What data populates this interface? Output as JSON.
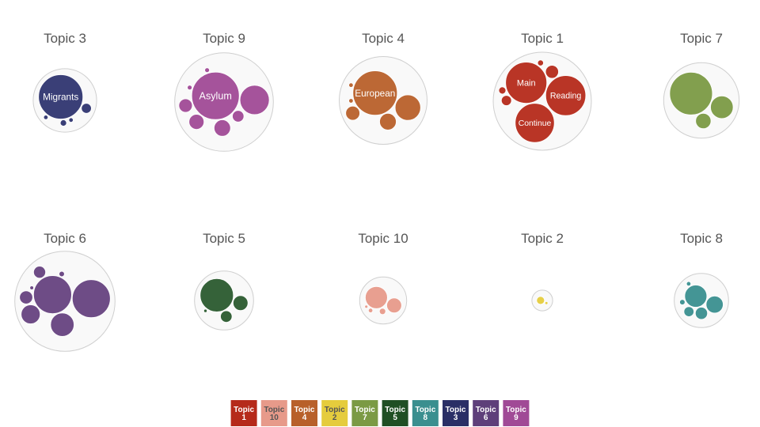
{
  "chart_data": {
    "type": "packed-bubble",
    "panels": [
      {
        "title": "Topic 3",
        "color": "#2f3570",
        "bubbles": [
          {
            "label": "Migrants",
            "value": 100
          },
          {
            "label": "",
            "value": 5
          },
          {
            "label": "",
            "value": 2
          },
          {
            "label": "",
            "value": 1
          },
          {
            "label": "",
            "value": 1
          }
        ]
      },
      {
        "title": "Topic 9",
        "color": "#a04a96",
        "bubbles": [
          {
            "label": "Asylum",
            "value": 100
          },
          {
            "label": "",
            "value": 38
          },
          {
            "label": "",
            "value": 12
          },
          {
            "label": "",
            "value": 10
          },
          {
            "label": "",
            "value": 8
          },
          {
            "label": "",
            "value": 6
          },
          {
            "label": "",
            "value": 1
          },
          {
            "label": "",
            "value": 1
          }
        ]
      },
      {
        "title": "Topic 4",
        "color": "#b8602a",
        "bubbles": [
          {
            "label": "European",
            "value": 100
          },
          {
            "label": "",
            "value": 33
          },
          {
            "label": "",
            "value": 14
          },
          {
            "label": "",
            "value": 10
          },
          {
            "label": "",
            "value": 1
          },
          {
            "label": "",
            "value": 1
          }
        ]
      },
      {
        "title": "Topic 1",
        "color": "#b52a1a",
        "bubbles": [
          {
            "label": "Main",
            "value": 100
          },
          {
            "label": "Reading",
            "value": 95
          },
          {
            "label": "Continue",
            "value": 90
          },
          {
            "label": "",
            "value": 10
          },
          {
            "label": "",
            "value": 6
          },
          {
            "label": "",
            "value": 3
          },
          {
            "label": "",
            "value": 2
          }
        ]
      },
      {
        "title": "Topic 7",
        "color": "#7b9a44",
        "bubbles": [
          {
            "label": "",
            "value": 100
          },
          {
            "label": "",
            "value": 28
          },
          {
            "label": "",
            "value": 13
          }
        ]
      },
      {
        "title": "Topic 6",
        "color": "#66427f",
        "bubbles": [
          {
            "label": "",
            "value": 100
          },
          {
            "label": "",
            "value": 100
          },
          {
            "label": "",
            "value": 38
          },
          {
            "label": "",
            "value": 25
          },
          {
            "label": "",
            "value": 12
          },
          {
            "label": "",
            "value": 10
          },
          {
            "label": "",
            "value": 2
          },
          {
            "label": "",
            "value": 1
          }
        ]
      },
      {
        "title": "Topic 5",
        "color": "#2a5a2e",
        "bubbles": [
          {
            "label": "",
            "value": 100
          },
          {
            "label": "",
            "value": 20
          },
          {
            "label": "",
            "value": 12
          },
          {
            "label": "",
            "value": 1
          }
        ]
      },
      {
        "title": "Topic 10",
        "color": "#e79a8a",
        "bubbles": [
          {
            "label": "",
            "value": 100
          },
          {
            "label": "",
            "value": 45
          },
          {
            "label": "",
            "value": 8
          },
          {
            "label": "",
            "value": 4
          },
          {
            "label": "",
            "value": 2
          }
        ]
      },
      {
        "title": "Topic 2",
        "color": "#e5cc3d",
        "bubbles": [
          {
            "label": "",
            "value": 100
          },
          {
            "label": "",
            "value": 15
          }
        ]
      },
      {
        "title": "Topic 8",
        "color": "#3a8f8f",
        "bubbles": [
          {
            "label": "",
            "value": 100
          },
          {
            "label": "",
            "value": 60
          },
          {
            "label": "",
            "value": 30
          },
          {
            "label": "",
            "value": 20
          },
          {
            "label": "",
            "value": 6
          },
          {
            "label": "",
            "value": 4
          }
        ]
      }
    ]
  },
  "legend": [
    {
      "line1": "Topic",
      "line2": "1",
      "color": "#b52a1a",
      "text_color": "#ffffff"
    },
    {
      "line1": "Topic",
      "line2": "10",
      "color": "#e79a8a",
      "text_color": "#555555"
    },
    {
      "line1": "Topic",
      "line2": "4",
      "color": "#b8602a",
      "text_color": "#ffffff"
    },
    {
      "line1": "Topic",
      "line2": "2",
      "color": "#e5cc3d",
      "text_color": "#555555"
    },
    {
      "line1": "Topic",
      "line2": "7",
      "color": "#7b9a44",
      "text_color": "#ffffff"
    },
    {
      "line1": "Topic",
      "line2": "5",
      "color": "#1f4f24",
      "text_color": "#ffffff"
    },
    {
      "line1": "Topic",
      "line2": "8",
      "color": "#3a8f8f",
      "text_color": "#ffffff"
    },
    {
      "line1": "Topic",
      "line2": "3",
      "color": "#2a2f66",
      "text_color": "#ffffff"
    },
    {
      "line1": "Topic",
      "line2": "6",
      "color": "#5e3f7a",
      "text_color": "#ffffff"
    },
    {
      "line1": "Topic",
      "line2": "9",
      "color": "#a04a96",
      "text_color": "#ffffff"
    }
  ]
}
